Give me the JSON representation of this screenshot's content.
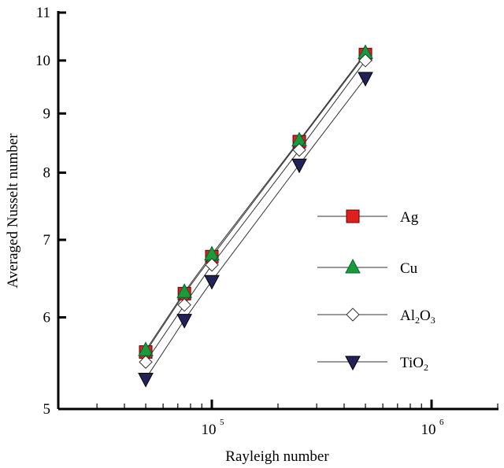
{
  "chart_data": {
    "type": "line",
    "xlabel": "Rayleigh number",
    "ylabel": "Averaged Nusselt number",
    "xscale": "log",
    "yscale": "log",
    "xlim": [
      20000,
      2000000
    ],
    "ylim": [
      5,
      11
    ],
    "x_ticks": [
      {
        "value": 100000,
        "base": "10",
        "exp": "5"
      },
      {
        "value": 1000000,
        "base": "10",
        "exp": "6"
      }
    ],
    "y_ticks": [
      "5",
      "6",
      "7",
      "8",
      "9",
      "10",
      "11"
    ],
    "x": [
      50000,
      75000,
      100000,
      250000,
      500000
    ],
    "legend_position": "center-right",
    "series": [
      {
        "name": "Ag",
        "label": "Ag",
        "marker": "square",
        "color": "#e02020",
        "values": [
          5.6,
          6.29,
          6.77,
          8.51,
          10.12
        ]
      },
      {
        "name": "Cu",
        "label": "Cu",
        "marker": "triangle-up",
        "color": "#1a9a3a",
        "values": [
          5.62,
          6.31,
          6.8,
          8.53,
          10.15
        ]
      },
      {
        "name": "Al2O3",
        "label": "Al",
        "sub1": "2",
        "mid": "O",
        "sub2": "3",
        "marker": "diamond-open",
        "color": "#ffffff",
        "values": [
          5.49,
          6.15,
          6.66,
          8.37,
          10.0
        ]
      },
      {
        "name": "TiO2",
        "label": "TiO",
        "sub1": "2",
        "marker": "triangle-down",
        "color": "#22225a",
        "values": [
          5.31,
          5.97,
          6.45,
          8.13,
          9.66
        ]
      }
    ]
  }
}
